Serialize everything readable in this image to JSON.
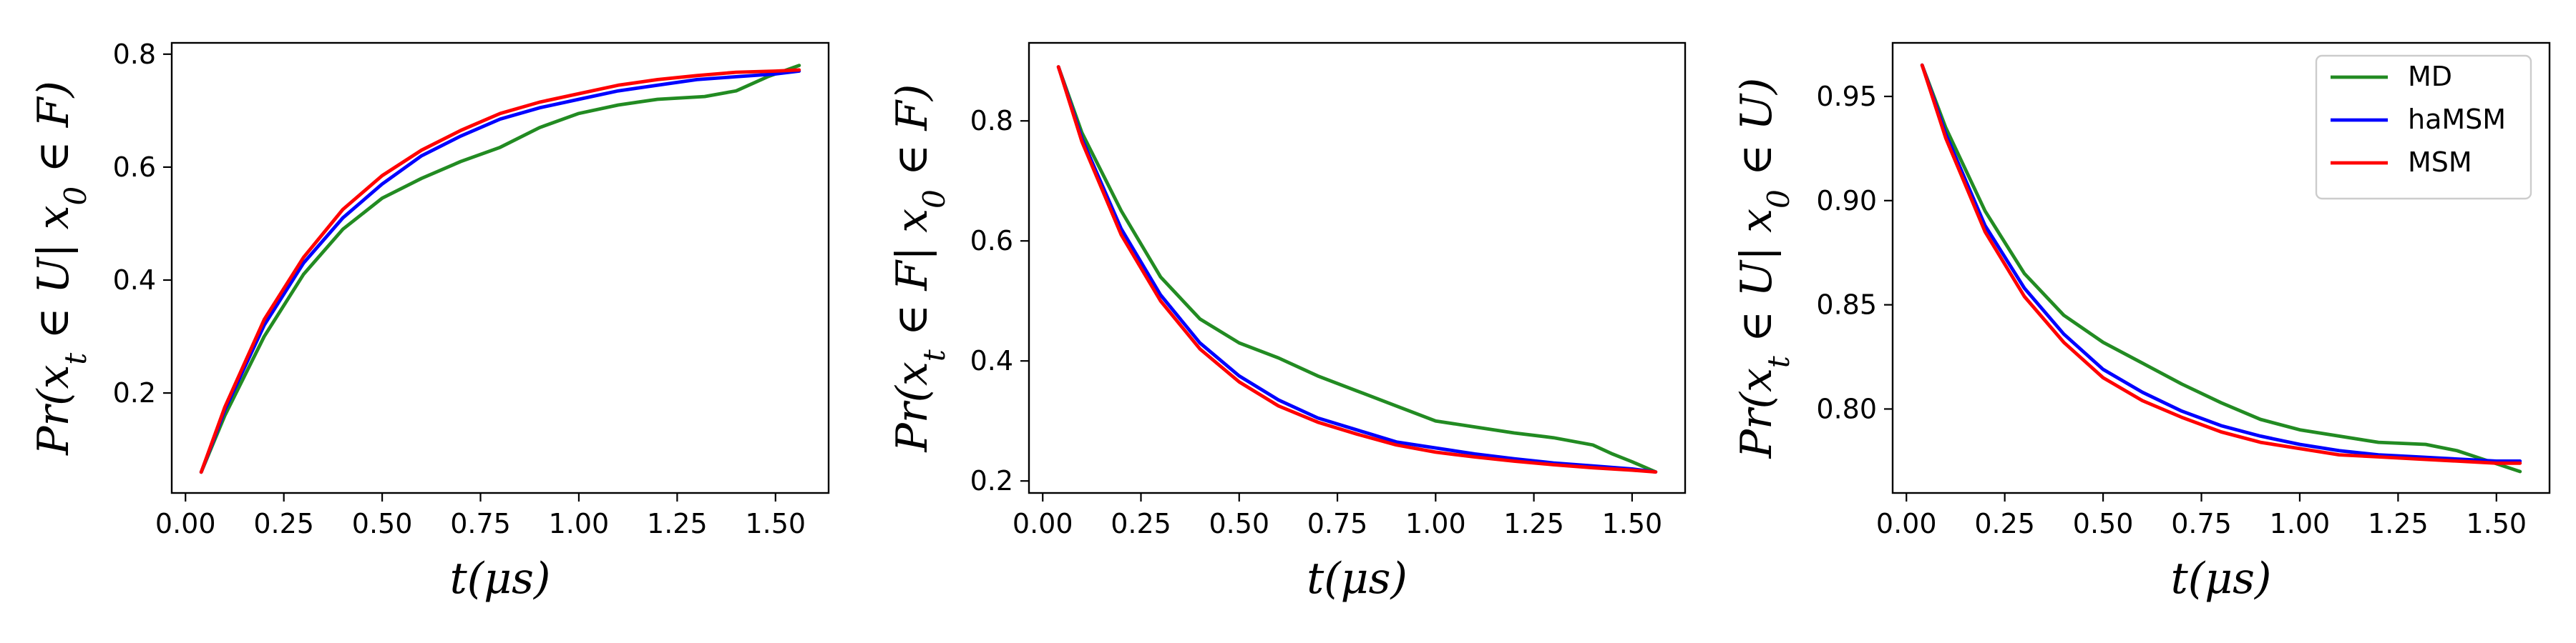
{
  "chart_data": [
    {
      "type": "line",
      "xlabel": "t(μs)",
      "ylabel": "Pr(xt ∈ U| x0 ∈ F)",
      "xlim": [
        -0.035,
        1.635
      ],
      "ylim": [
        0.023,
        0.82
      ],
      "xticks": [
        "0.00",
        "0.25",
        "0.50",
        "0.75",
        "1.00",
        "1.25",
        "1.50"
      ],
      "yticks": [
        "0.2",
        "0.4",
        "0.6",
        "0.8"
      ],
      "series": [
        {
          "name": "MD",
          "color": "#228b22",
          "x": [
            0.04,
            0.1,
            0.2,
            0.3,
            0.4,
            0.5,
            0.6,
            0.7,
            0.8,
            0.9,
            1.0,
            1.1,
            1.2,
            1.32,
            1.4,
            1.48,
            1.56
          ],
          "y": [
            0.06,
            0.16,
            0.3,
            0.41,
            0.49,
            0.545,
            0.58,
            0.61,
            0.635,
            0.67,
            0.695,
            0.71,
            0.72,
            0.725,
            0.735,
            0.76,
            0.78
          ]
        },
        {
          "name": "haMSM",
          "color": "#0000ff",
          "x": [
            0.04,
            0.1,
            0.2,
            0.3,
            0.4,
            0.5,
            0.6,
            0.7,
            0.8,
            0.9,
            1.0,
            1.1,
            1.2,
            1.3,
            1.4,
            1.5,
            1.56
          ],
          "y": [
            0.06,
            0.17,
            0.32,
            0.43,
            0.51,
            0.57,
            0.62,
            0.655,
            0.685,
            0.705,
            0.72,
            0.735,
            0.745,
            0.755,
            0.76,
            0.765,
            0.77
          ]
        },
        {
          "name": "MSM",
          "color": "#ff0000",
          "x": [
            0.04,
            0.1,
            0.2,
            0.3,
            0.4,
            0.5,
            0.6,
            0.7,
            0.8,
            0.9,
            1.0,
            1.1,
            1.2,
            1.3,
            1.4,
            1.5,
            1.56
          ],
          "y": [
            0.06,
            0.175,
            0.33,
            0.44,
            0.525,
            0.585,
            0.63,
            0.665,
            0.695,
            0.715,
            0.73,
            0.745,
            0.755,
            0.762,
            0.768,
            0.77,
            0.772
          ]
        }
      ]
    },
    {
      "type": "line",
      "xlabel": "t(μs)",
      "ylabel": "Pr(xt ∈ F| x0 ∈ F)",
      "xlim": [
        -0.035,
        1.635
      ],
      "ylim": [
        0.18,
        0.93
      ],
      "xticks": [
        "0.00",
        "0.25",
        "0.50",
        "0.75",
        "1.00",
        "1.25",
        "1.50"
      ],
      "yticks": [
        "0.2",
        "0.4",
        "0.6",
        "0.8"
      ],
      "series": [
        {
          "name": "MD",
          "color": "#228b22",
          "x": [
            0.04,
            0.1,
            0.2,
            0.3,
            0.4,
            0.5,
            0.6,
            0.7,
            0.8,
            0.9,
            1.0,
            1.1,
            1.2,
            1.3,
            1.4,
            1.45,
            1.5,
            1.56
          ],
          "y": [
            0.89,
            0.78,
            0.65,
            0.54,
            0.47,
            0.43,
            0.405,
            0.375,
            0.35,
            0.325,
            0.3,
            0.29,
            0.28,
            0.272,
            0.26,
            0.245,
            0.232,
            0.215
          ]
        },
        {
          "name": "haMSM",
          "color": "#0000ff",
          "x": [
            0.04,
            0.1,
            0.2,
            0.3,
            0.4,
            0.5,
            0.6,
            0.7,
            0.8,
            0.9,
            1.0,
            1.1,
            1.2,
            1.3,
            1.4,
            1.5,
            1.56
          ],
          "y": [
            0.89,
            0.77,
            0.62,
            0.51,
            0.43,
            0.375,
            0.335,
            0.305,
            0.285,
            0.265,
            0.255,
            0.245,
            0.237,
            0.23,
            0.225,
            0.22,
            0.215
          ]
        },
        {
          "name": "MSM",
          "color": "#ff0000",
          "x": [
            0.04,
            0.1,
            0.2,
            0.3,
            0.4,
            0.5,
            0.6,
            0.7,
            0.8,
            0.9,
            1.0,
            1.1,
            1.2,
            1.3,
            1.4,
            1.5,
            1.56
          ],
          "y": [
            0.89,
            0.765,
            0.61,
            0.5,
            0.42,
            0.365,
            0.325,
            0.298,
            0.278,
            0.26,
            0.248,
            0.24,
            0.233,
            0.227,
            0.222,
            0.218,
            0.215
          ]
        }
      ]
    },
    {
      "type": "line",
      "xlabel": "t(μs)",
      "ylabel": "Pr(xt ∈ U| x0 ∈ U)",
      "xlim": [
        -0.035,
        1.635
      ],
      "ylim": [
        0.7597,
        0.9757
      ],
      "xticks": [
        "0.00",
        "0.25",
        "0.50",
        "0.75",
        "1.00",
        "1.25",
        "1.50"
      ],
      "yticks": [
        "0.80",
        "0.85",
        "0.90",
        "0.95"
      ],
      "series": [
        {
          "name": "MD",
          "color": "#228b22",
          "x": [
            0.04,
            0.1,
            0.2,
            0.3,
            0.4,
            0.5,
            0.6,
            0.7,
            0.8,
            0.9,
            1.0,
            1.1,
            1.2,
            1.32,
            1.4,
            1.48,
            1.56
          ],
          "y": [
            0.965,
            0.935,
            0.895,
            0.865,
            0.845,
            0.832,
            0.822,
            0.812,
            0.803,
            0.795,
            0.79,
            0.787,
            0.784,
            0.783,
            0.78,
            0.775,
            0.77
          ]
        },
        {
          "name": "haMSM",
          "color": "#0000ff",
          "x": [
            0.04,
            0.1,
            0.2,
            0.3,
            0.4,
            0.5,
            0.6,
            0.7,
            0.8,
            0.9,
            1.0,
            1.1,
            1.2,
            1.3,
            1.4,
            1.5,
            1.56
          ],
          "y": [
            0.965,
            0.932,
            0.888,
            0.858,
            0.836,
            0.819,
            0.808,
            0.799,
            0.792,
            0.787,
            0.783,
            0.78,
            0.778,
            0.777,
            0.776,
            0.775,
            0.775
          ]
        },
        {
          "name": "MSM",
          "color": "#ff0000",
          "x": [
            0.04,
            0.1,
            0.2,
            0.3,
            0.4,
            0.5,
            0.6,
            0.7,
            0.8,
            0.9,
            1.0,
            1.1,
            1.2,
            1.3,
            1.4,
            1.5,
            1.56
          ],
          "y": [
            0.965,
            0.93,
            0.885,
            0.854,
            0.832,
            0.815,
            0.804,
            0.796,
            0.789,
            0.784,
            0.781,
            0.778,
            0.777,
            0.776,
            0.775,
            0.774,
            0.774
          ]
        }
      ]
    }
  ],
  "legend": {
    "placement": "upper right of third plot",
    "entries": [
      "MD",
      "haMSM",
      "MSM"
    ]
  }
}
